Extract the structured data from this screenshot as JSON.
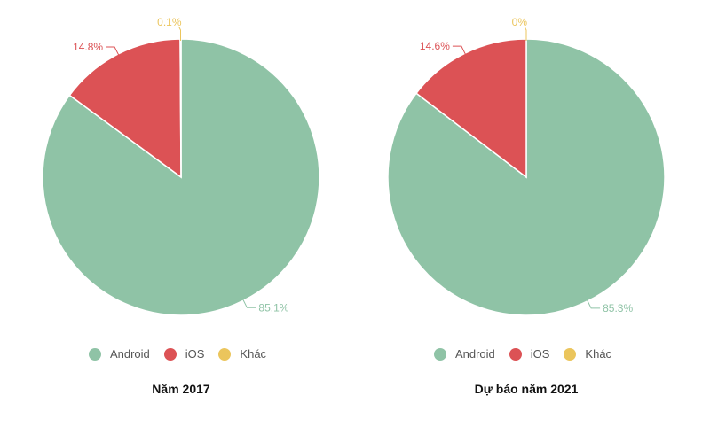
{
  "colors": {
    "Android": "#8fc3a6",
    "iOS": "#dc5255",
    "Khác": "#ebc55c"
  },
  "chart_data": [
    {
      "type": "pie",
      "title": "Năm 2017",
      "legend_position": "bottom",
      "slices": [
        {
          "name": "Android",
          "value": 85.1,
          "label": "85.1%"
        },
        {
          "name": "iOS",
          "value": 14.8,
          "label": "14.8%"
        },
        {
          "name": "Khác",
          "value": 0.1,
          "label": "0.1%"
        }
      ]
    },
    {
      "type": "pie",
      "title": "Dự báo năm 2021",
      "legend_position": "bottom",
      "slices": [
        {
          "name": "Android",
          "value": 85.3,
          "label": "85.3%"
        },
        {
          "name": "iOS",
          "value": 14.6,
          "label": "14.6%"
        },
        {
          "name": "Khác",
          "value": 0,
          "label": "0%"
        }
      ]
    }
  ]
}
